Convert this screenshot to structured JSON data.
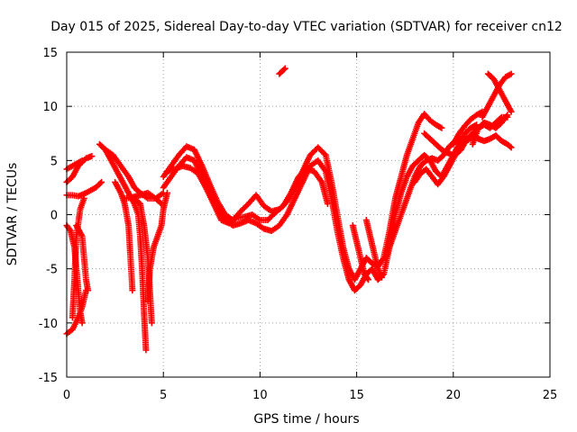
{
  "chart_data": {
    "type": "scatter",
    "title": "Day 015 of 2025, Sidereal Day-to-day VTEC variation (SDTVAR) for receiver cn12",
    "xlabel": "GPS time / hours",
    "ylabel": "SDTVAR / TECUs",
    "xlim": [
      0,
      25
    ],
    "ylim": [
      -15,
      15
    ],
    "xticks": [
      0,
      5,
      10,
      15,
      20,
      25
    ],
    "yticks": [
      -15,
      -10,
      -5,
      0,
      5,
      10,
      15
    ],
    "xtick_labels": [
      "0",
      "5",
      "10",
      "15",
      "20",
      "25"
    ],
    "ytick_labels": [
      "-15",
      "-10",
      "-5",
      "0",
      "5",
      "10",
      "15"
    ],
    "grid": true,
    "marker": "+",
    "color": "#ff0000",
    "series": [
      {
        "name": "track-1",
        "points": [
          [
            0.0,
            3.0
          ],
          [
            0.3,
            3.5
          ],
          [
            0.6,
            4.5
          ],
          [
            1.0,
            5.2
          ],
          [
            1.3,
            5.4
          ]
        ]
      },
      {
        "name": "track-2",
        "points": [
          [
            0.0,
            4.2
          ],
          [
            0.4,
            4.6
          ],
          [
            0.8,
            5.0
          ]
        ]
      },
      {
        "name": "track-3",
        "points": [
          [
            0.0,
            1.8
          ],
          [
            0.3,
            1.8
          ],
          [
            0.6,
            1.7
          ],
          [
            1.0,
            2.0
          ],
          [
            1.5,
            2.5
          ],
          [
            1.8,
            3.0
          ]
        ]
      },
      {
        "name": "track-4",
        "points": [
          [
            0.0,
            -11.0
          ],
          [
            0.3,
            -10.6
          ],
          [
            0.6,
            -9.5
          ],
          [
            0.8,
            -8.5
          ],
          [
            1.0,
            -7.0
          ]
        ]
      },
      {
        "name": "track-5",
        "points": [
          [
            0.5,
            -1.0
          ],
          [
            0.8,
            -2.0
          ],
          [
            0.9,
            -4.0
          ],
          [
            1.0,
            -6.0
          ],
          [
            1.1,
            -7.0
          ]
        ]
      },
      {
        "name": "track-6",
        "points": [
          [
            0.0,
            -1.0
          ],
          [
            0.2,
            -1.5
          ],
          [
            0.4,
            -3.0
          ],
          [
            0.5,
            -5.0
          ],
          [
            0.6,
            -7.0
          ],
          [
            0.7,
            -9.0
          ],
          [
            0.8,
            -10.0
          ]
        ]
      },
      {
        "name": "track-7",
        "points": [
          [
            0.3,
            -9.5
          ],
          [
            0.4,
            -6.0
          ],
          [
            0.5,
            -2.0
          ],
          [
            0.7,
            0.5
          ],
          [
            0.9,
            1.5
          ]
        ]
      },
      {
        "name": "track-8",
        "points": [
          [
            1.7,
            6.5
          ],
          [
            2.0,
            6.0
          ],
          [
            2.3,
            5.0
          ],
          [
            2.6,
            4.0
          ],
          [
            2.9,
            3.0
          ],
          [
            3.2,
            2.0
          ],
          [
            3.5,
            1.0
          ],
          [
            3.7,
            0.0
          ],
          [
            3.8,
            -2.0
          ],
          [
            3.9,
            -5.0
          ],
          [
            4.0,
            -9.0
          ],
          [
            4.1,
            -12.5
          ]
        ]
      },
      {
        "name": "track-9",
        "points": [
          [
            2.0,
            6.0
          ],
          [
            2.4,
            5.5
          ],
          [
            2.8,
            4.5
          ],
          [
            3.2,
            3.5
          ],
          [
            3.5,
            2.5
          ],
          [
            3.8,
            2.0
          ],
          [
            4.2,
            1.5
          ],
          [
            4.6,
            1.5
          ],
          [
            5.0,
            2.0
          ]
        ]
      },
      {
        "name": "track-10",
        "points": [
          [
            2.5,
            3.0
          ],
          [
            2.8,
            2.0
          ],
          [
            3.0,
            1.0
          ],
          [
            3.2,
            -1.0
          ],
          [
            3.3,
            -4.0
          ],
          [
            3.4,
            -7.0
          ]
        ]
      },
      {
        "name": "track-11",
        "points": [
          [
            3.5,
            1.5
          ],
          [
            3.8,
            1.0
          ],
          [
            4.0,
            -1.0
          ],
          [
            4.2,
            -4.0
          ],
          [
            4.3,
            -7.0
          ],
          [
            4.4,
            -10.0
          ]
        ]
      },
      {
        "name": "track-12",
        "points": [
          [
            4.2,
            -8.0
          ],
          [
            4.3,
            -5.0
          ],
          [
            4.5,
            -3.0
          ],
          [
            4.7,
            -2.0
          ],
          [
            4.9,
            -1.0
          ],
          [
            5.0,
            0.5
          ],
          [
            5.2,
            2.0
          ]
        ]
      },
      {
        "name": "track-13",
        "points": [
          [
            3.0,
            1.5
          ],
          [
            3.4,
            1.6
          ],
          [
            3.8,
            1.8
          ],
          [
            4.2,
            2.0
          ],
          [
            4.6,
            1.5
          ],
          [
            4.9,
            1.0
          ]
        ]
      },
      {
        "name": "track-14",
        "points": [
          [
            5.0,
            2.5
          ],
          [
            5.4,
            3.5
          ],
          [
            5.8,
            4.5
          ],
          [
            6.2,
            5.3
          ],
          [
            6.6,
            5.0
          ],
          [
            7.0,
            3.5
          ],
          [
            7.4,
            2.0
          ],
          [
            7.8,
            0.5
          ],
          [
            8.2,
            -0.5
          ],
          [
            8.6,
            -1.0
          ],
          [
            9.0,
            -0.8
          ],
          [
            9.4,
            -0.5
          ],
          [
            9.8,
            -0.8
          ],
          [
            10.2,
            -1.3
          ],
          [
            10.6,
            -1.5
          ],
          [
            11.0,
            -1.0
          ],
          [
            11.4,
            0.0
          ],
          [
            11.8,
            1.5
          ],
          [
            12.2,
            3.0
          ],
          [
            12.6,
            4.5
          ],
          [
            13.0,
            5.0
          ],
          [
            13.4,
            4.0
          ],
          [
            13.7,
            1.5
          ],
          [
            14.0,
            -1.5
          ],
          [
            14.3,
            -4.0
          ],
          [
            14.6,
            -6.0
          ],
          [
            14.9,
            -7.0
          ],
          [
            15.2,
            -6.5
          ],
          [
            15.5,
            -5.5
          ],
          [
            15.8,
            -5.0
          ],
          [
            16.1,
            -6.0
          ],
          [
            16.4,
            -5.5
          ],
          [
            16.7,
            -3.0
          ],
          [
            17.0,
            0.0
          ],
          [
            17.3,
            2.0
          ],
          [
            17.6,
            3.5
          ],
          [
            17.9,
            4.5
          ],
          [
            18.2,
            5.0
          ],
          [
            18.5,
            5.5
          ],
          [
            18.8,
            5.0
          ],
          [
            19.1,
            4.0
          ],
          [
            19.4,
            3.5
          ],
          [
            19.7,
            4.5
          ],
          [
            20.0,
            5.5
          ],
          [
            20.3,
            6.5
          ],
          [
            20.6,
            7.5
          ],
          [
            20.9,
            8.0
          ],
          [
            21.2,
            8.3
          ]
        ]
      },
      {
        "name": "track-15",
        "points": [
          [
            5.0,
            3.5
          ],
          [
            5.4,
            4.5
          ],
          [
            5.8,
            5.5
          ],
          [
            6.2,
            6.3
          ],
          [
            6.6,
            6.0
          ],
          [
            7.0,
            4.5
          ],
          [
            7.4,
            2.8
          ],
          [
            7.8,
            1.2
          ],
          [
            8.2,
            0.0
          ],
          [
            8.6,
            -0.5
          ],
          [
            9.0,
            0.3
          ],
          [
            9.4,
            1.0
          ],
          [
            9.8,
            1.8
          ],
          [
            10.2,
            0.8
          ],
          [
            10.6,
            0.3
          ],
          [
            11.0,
            0.5
          ],
          [
            11.4,
            1.2
          ],
          [
            11.8,
            2.5
          ],
          [
            12.2,
            4.0
          ],
          [
            12.6,
            5.5
          ],
          [
            13.0,
            6.2
          ],
          [
            13.4,
            5.5
          ],
          [
            13.7,
            3.0
          ],
          [
            14.0,
            0.0
          ],
          [
            14.3,
            -3.0
          ],
          [
            14.6,
            -5.0
          ],
          [
            14.9,
            -6.0
          ],
          [
            15.2,
            -5.0
          ],
          [
            15.5,
            -4.0
          ],
          [
            15.8,
            -4.5
          ],
          [
            16.1,
            -4.8
          ],
          [
            16.4,
            -4.0
          ],
          [
            16.7,
            -1.5
          ],
          [
            17.0,
            1.5
          ],
          [
            17.3,
            3.5
          ],
          [
            17.6,
            5.5
          ],
          [
            17.9,
            7.0
          ],
          [
            18.2,
            8.5
          ],
          [
            18.5,
            9.3
          ],
          [
            18.8,
            8.7
          ],
          [
            19.1,
            8.3
          ],
          [
            19.4,
            8.0
          ]
        ]
      },
      {
        "name": "track-16",
        "points": [
          [
            5.2,
            4.0
          ],
          [
            5.6,
            4.2
          ],
          [
            6.0,
            4.5
          ],
          [
            6.4,
            4.3
          ],
          [
            6.8,
            3.8
          ],
          [
            7.2,
            2.5
          ],
          [
            7.6,
            1.0
          ],
          [
            8.0,
            -0.5
          ],
          [
            8.4,
            -0.8
          ],
          [
            8.8,
            -0.3
          ],
          [
            9.2,
            -0.2
          ],
          [
            9.6,
            0.0
          ],
          [
            10.0,
            -0.5
          ],
          [
            10.4,
            -0.5
          ],
          [
            10.8,
            0.2
          ],
          [
            11.2,
            0.8
          ],
          [
            11.6,
            2.0
          ],
          [
            12.0,
            3.5
          ],
          [
            12.4,
            4.2
          ],
          [
            12.8,
            4.0
          ],
          [
            13.2,
            3.0
          ],
          [
            13.5,
            1.0
          ]
        ]
      },
      {
        "name": "track-17",
        "points": [
          [
            11.0,
            13.0
          ],
          [
            11.3,
            13.5
          ]
        ]
      },
      {
        "name": "track-18",
        "points": [
          [
            14.8,
            -1.0
          ],
          [
            15.0,
            -2.5
          ],
          [
            15.2,
            -4.0
          ],
          [
            15.4,
            -5.5
          ],
          [
            15.6,
            -6.0
          ]
        ]
      },
      {
        "name": "track-19",
        "points": [
          [
            15.5,
            -0.5
          ],
          [
            15.7,
            -2.0
          ],
          [
            15.9,
            -3.5
          ],
          [
            16.1,
            -5.0
          ],
          [
            16.3,
            -5.8
          ]
        ]
      },
      {
        "name": "track-20",
        "points": [
          [
            16.5,
            -4.0
          ],
          [
            16.8,
            -2.5
          ],
          [
            17.1,
            -1.0
          ],
          [
            17.4,
            0.5
          ],
          [
            17.7,
            2.0
          ],
          [
            18.0,
            3.5
          ],
          [
            18.3,
            4.5
          ],
          [
            18.6,
            5.0
          ],
          [
            18.9,
            5.2
          ],
          [
            19.2,
            5.0
          ],
          [
            19.5,
            5.5
          ],
          [
            19.8,
            6.3
          ],
          [
            20.1,
            6.8
          ],
          [
            20.4,
            7.0
          ],
          [
            20.7,
            6.8
          ],
          [
            21.0,
            7.2
          ],
          [
            21.3,
            7.0
          ],
          [
            21.6,
            6.8
          ],
          [
            21.9,
            7.0
          ],
          [
            22.2,
            7.3
          ],
          [
            22.5,
            6.8
          ],
          [
            22.8,
            6.5
          ],
          [
            23.0,
            6.2
          ]
        ]
      },
      {
        "name": "track-21",
        "points": [
          [
            18.0,
            3.0
          ],
          [
            18.3,
            3.8
          ],
          [
            18.6,
            4.2
          ],
          [
            18.9,
            3.5
          ],
          [
            19.2,
            2.8
          ],
          [
            19.5,
            3.5
          ],
          [
            19.8,
            4.5
          ],
          [
            20.1,
            5.5
          ],
          [
            20.4,
            6.0
          ],
          [
            20.7,
            7.0
          ],
          [
            21.0,
            7.5
          ],
          [
            21.3,
            8.0
          ],
          [
            21.6,
            8.3
          ],
          [
            21.9,
            8.0
          ],
          [
            22.2,
            8.5
          ],
          [
            22.5,
            9.0
          ],
          [
            22.8,
            9.0
          ]
        ]
      },
      {
        "name": "track-22",
        "points": [
          [
            18.5,
            7.5
          ],
          [
            18.8,
            7.0
          ],
          [
            19.1,
            6.5
          ],
          [
            19.4,
            6.0
          ],
          [
            19.7,
            5.7
          ],
          [
            20.0,
            5.5
          ]
        ]
      },
      {
        "name": "track-23",
        "points": [
          [
            20.0,
            6.5
          ],
          [
            20.3,
            7.5
          ],
          [
            20.6,
            8.2
          ],
          [
            20.9,
            8.8
          ],
          [
            21.2,
            9.2
          ],
          [
            21.5,
            9.5
          ]
        ]
      },
      {
        "name": "track-24",
        "points": [
          [
            21.8,
            13.0
          ],
          [
            22.1,
            12.5
          ],
          [
            22.4,
            11.5
          ],
          [
            22.7,
            10.5
          ],
          [
            23.0,
            9.5
          ]
        ]
      },
      {
        "name": "track-25",
        "points": [
          [
            21.5,
            9.0
          ],
          [
            21.8,
            10.0
          ],
          [
            22.1,
            11.0
          ],
          [
            22.4,
            12.0
          ],
          [
            22.7,
            12.7
          ],
          [
            23.0,
            13.0
          ]
        ]
      },
      {
        "name": "track-26",
        "points": [
          [
            21.0,
            6.5
          ],
          [
            21.3,
            8.0
          ],
          [
            21.6,
            8.5
          ],
          [
            21.9,
            8.3
          ],
          [
            22.2,
            8.0
          ],
          [
            22.5,
            8.5
          ],
          [
            22.8,
            9.2
          ]
        ]
      }
    ]
  }
}
